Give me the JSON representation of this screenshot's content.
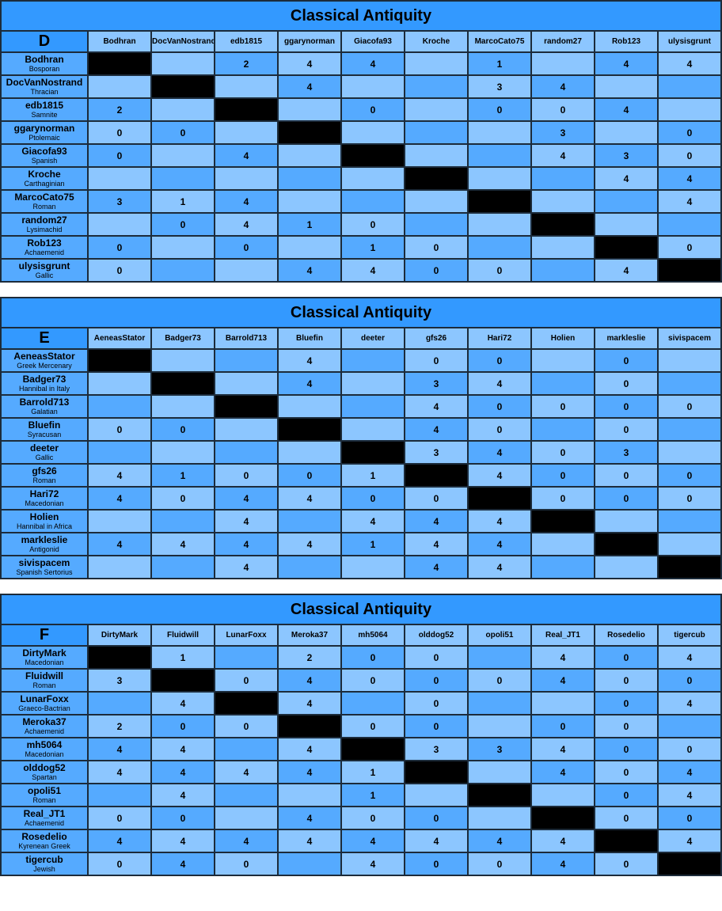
{
  "tables": [
    {
      "title": "Classical Antiquity",
      "group": "D",
      "columns": [
        "Bodhran",
        "DocVanNostrand",
        "edb1815",
        "ggarynorman",
        "Giacofa93",
        "Kroche",
        "MarcoCato75",
        "random27",
        "Rob123",
        "ulysisgrunt"
      ],
      "rows": [
        {
          "name": "Bodhran",
          "faction": "Bosporan",
          "cells": [
            null,
            null,
            2,
            4,
            4,
            null,
            1,
            null,
            4,
            4
          ]
        },
        {
          "name": "DocVanNostrand",
          "faction": "Thracian",
          "cells": [
            null,
            null,
            null,
            4,
            null,
            null,
            3,
            4,
            null,
            null
          ]
        },
        {
          "name": "edb1815",
          "faction": "Samnite",
          "cells": [
            2,
            null,
            null,
            null,
            0,
            null,
            0,
            0,
            4,
            null
          ]
        },
        {
          "name": "ggarynorman",
          "faction": "Ptolemaic",
          "cells": [
            0,
            0,
            null,
            null,
            null,
            null,
            null,
            3,
            null,
            0
          ]
        },
        {
          "name": "Giacofa93",
          "faction": "Spanish",
          "cells": [
            0,
            null,
            4,
            null,
            null,
            null,
            null,
            4,
            3,
            0
          ]
        },
        {
          "name": "Kroche",
          "faction": "Carthaginian",
          "cells": [
            null,
            null,
            null,
            null,
            null,
            null,
            null,
            null,
            4,
            4
          ]
        },
        {
          "name": "MarcoCato75",
          "faction": "Roman",
          "cells": [
            3,
            1,
            4,
            null,
            null,
            null,
            null,
            null,
            null,
            4
          ]
        },
        {
          "name": "random27",
          "faction": "Lysimachid",
          "cells": [
            null,
            0,
            4,
            1,
            0,
            null,
            null,
            null,
            null,
            null
          ]
        },
        {
          "name": "Rob123",
          "faction": "Achaemenid",
          "cells": [
            0,
            null,
            0,
            null,
            1,
            0,
            null,
            null,
            null,
            0
          ]
        },
        {
          "name": "ulysisgrunt",
          "faction": "Gallic",
          "cells": [
            0,
            null,
            null,
            4,
            4,
            0,
            0,
            null,
            4,
            null
          ]
        }
      ]
    },
    {
      "title": "Classical Antiquity",
      "group": "E",
      "columns": [
        "AeneasStator",
        "Badger73",
        "Barrold713",
        "Bluefin",
        "deeter",
        "gfs26",
        "Hari72",
        "Holien",
        "markleslie",
        "sivispacem"
      ],
      "rows": [
        {
          "name": "AeneasStator",
          "faction": "Greek Mercenary",
          "cells": [
            null,
            null,
            null,
            4,
            null,
            0,
            0,
            null,
            0,
            null
          ]
        },
        {
          "name": "Badger73",
          "faction": "Hannibal in Italy",
          "cells": [
            null,
            null,
            null,
            4,
            null,
            3,
            4,
            null,
            0,
            null
          ]
        },
        {
          "name": "Barrold713",
          "faction": "Galatian",
          "cells": [
            null,
            null,
            null,
            null,
            null,
            4,
            0,
            0,
            0,
            0
          ]
        },
        {
          "name": "Bluefin",
          "faction": "Syracusan",
          "cells": [
            0,
            0,
            null,
            null,
            null,
            4,
            0,
            null,
            0,
            null
          ]
        },
        {
          "name": "deeter",
          "faction": "Gallic",
          "cells": [
            null,
            null,
            null,
            null,
            null,
            3,
            4,
            0,
            3,
            null
          ]
        },
        {
          "name": "gfs26",
          "faction": "Roman",
          "cells": [
            4,
            1,
            0,
            0,
            1,
            null,
            4,
            0,
            0,
            0
          ]
        },
        {
          "name": "Hari72",
          "faction": "Macedonian",
          "cells": [
            4,
            0,
            4,
            4,
            0,
            0,
            null,
            0,
            0,
            0
          ]
        },
        {
          "name": "Holien",
          "faction": "Hannibal in Africa",
          "cells": [
            null,
            null,
            4,
            null,
            4,
            4,
            4,
            null,
            null,
            null
          ]
        },
        {
          "name": "markleslie",
          "faction": "Antigonid",
          "cells": [
            4,
            4,
            4,
            4,
            1,
            4,
            4,
            null,
            null,
            null
          ]
        },
        {
          "name": "sivispacem",
          "faction": "Spanish Sertorius",
          "cells": [
            null,
            null,
            4,
            null,
            null,
            4,
            4,
            null,
            null,
            null
          ]
        }
      ]
    },
    {
      "title": "Classical Antiquity",
      "group": "F",
      "columns": [
        "DirtyMark",
        "Fluidwill",
        "LunarFoxx",
        "Meroka37",
        "mh5064",
        "olddog52",
        "opoli51",
        "Real_JT1",
        "Rosedelio",
        "tigercub"
      ],
      "rows": [
        {
          "name": "DirtyMark",
          "faction": "Macedonian",
          "cells": [
            null,
            1,
            null,
            2,
            0,
            0,
            null,
            4,
            0,
            4
          ]
        },
        {
          "name": "Fluidwill",
          "faction": "Roman",
          "cells": [
            3,
            null,
            0,
            4,
            0,
            0,
            0,
            4,
            0,
            0
          ]
        },
        {
          "name": "LunarFoxx",
          "faction": "Graeco-Bactrian",
          "cells": [
            null,
            4,
            null,
            4,
            null,
            0,
            null,
            null,
            0,
            4
          ]
        },
        {
          "name": "Meroka37",
          "faction": "Achaemenid",
          "cells": [
            2,
            0,
            0,
            null,
            0,
            0,
            null,
            0,
            0,
            null
          ]
        },
        {
          "name": "mh5064",
          "faction": "Macedonian",
          "cells": [
            4,
            4,
            null,
            4,
            null,
            3,
            3,
            4,
            0,
            0
          ]
        },
        {
          "name": "olddog52",
          "faction": "Spartan",
          "cells": [
            4,
            4,
            4,
            4,
            1,
            null,
            null,
            4,
            0,
            4
          ]
        },
        {
          "name": "opoli51",
          "faction": "Roman",
          "cells": [
            null,
            4,
            null,
            null,
            1,
            null,
            null,
            null,
            0,
            4
          ]
        },
        {
          "name": "Real_JT1",
          "faction": "Achaemenid",
          "cells": [
            0,
            0,
            null,
            4,
            0,
            0,
            null,
            null,
            0,
            0
          ]
        },
        {
          "name": "Rosedelio",
          "faction": "Kyrenean Greek",
          "cells": [
            4,
            4,
            4,
            4,
            4,
            4,
            4,
            4,
            null,
            4
          ]
        },
        {
          "name": "tigercub",
          "faction": "Jewish",
          "cells": [
            0,
            4,
            0,
            null,
            4,
            0,
            0,
            4,
            0,
            null
          ]
        }
      ]
    }
  ]
}
